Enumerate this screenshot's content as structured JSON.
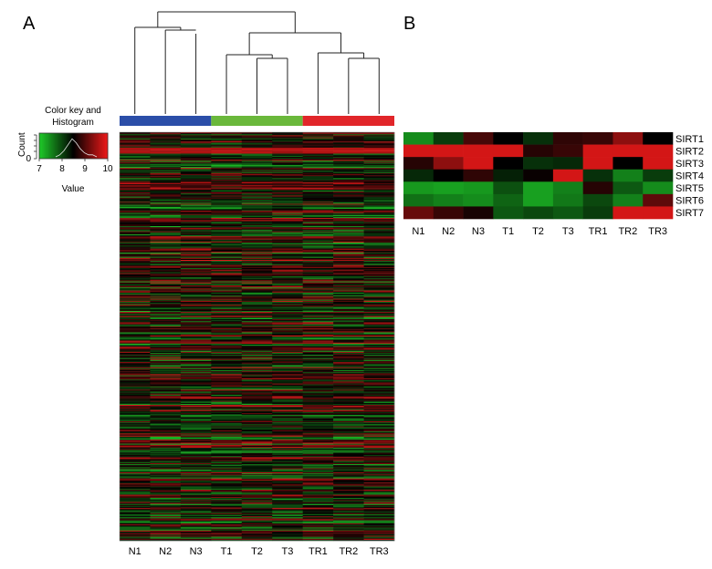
{
  "figure": {
    "panel_a_label": "A",
    "panel_b_label": "B"
  },
  "chart_data": [
    {
      "type": "heatmap",
      "title": "",
      "samples": [
        "N1",
        "N2",
        "N3",
        "T1",
        "T2",
        "T3",
        "TR1",
        "TR2",
        "TR3"
      ],
      "groups": [
        {
          "name": "N",
          "color": "#2b4ea8",
          "samples": [
            "N1",
            "N2",
            "N3"
          ]
        },
        {
          "name": "T",
          "color": "#6ab83b",
          "samples": [
            "T1",
            "T2",
            "T3"
          ]
        },
        {
          "name": "TR",
          "color": "#e1262a",
          "samples": [
            "TR1",
            "TR2",
            "TR3"
          ]
        }
      ],
      "dendrogram": "((N1,(N2,N3)),((T1,(T2,T3)),(TR1,(TR2,TR3))))",
      "color_key": {
        "title_line1": "Color key and",
        "title_line2": "Histogram",
        "ylabel": "Count",
        "xlabel": "Value",
        "ticks": [
          "7",
          "8",
          "9",
          "10"
        ],
        "yticks": [
          "0"
        ],
        "range": [
          7,
          10
        ],
        "low_color": "#22c52e",
        "mid_color": "#000000",
        "high_color": "#e61b1b"
      },
      "row_count": 400,
      "high_expression_row_band": [
        15,
        20
      ]
    },
    {
      "type": "heatmap",
      "title": "",
      "samples": [
        "N1",
        "N2",
        "N3",
        "T1",
        "T2",
        "T3",
        "TR1",
        "TR2",
        "TR3"
      ],
      "rows": [
        "SIRT1",
        "SIRT2",
        "SIRT3",
        "SIRT4",
        "SIRT5",
        "SIRT6",
        "SIRT7"
      ],
      "values": [
        [
          0.15,
          0.35,
          0.65,
          0.5,
          0.38,
          0.6,
          0.62,
          0.8,
          0.5
        ],
        [
          0.95,
          0.95,
          0.95,
          0.95,
          0.58,
          0.62,
          0.95,
          0.95,
          0.95
        ],
        [
          0.58,
          0.8,
          0.95,
          0.5,
          0.38,
          0.4,
          0.95,
          0.5,
          0.95
        ],
        [
          0.4,
          0.5,
          0.6,
          0.42,
          0.52,
          0.95,
          0.38,
          0.18,
          0.35
        ],
        [
          0.12,
          0.1,
          0.12,
          0.3,
          0.1,
          0.18,
          0.58,
          0.28,
          0.15
        ],
        [
          0.22,
          0.18,
          0.15,
          0.25,
          0.1,
          0.2,
          0.32,
          0.18,
          0.7
        ],
        [
          0.72,
          0.62,
          0.55,
          0.28,
          0.32,
          0.28,
          0.35,
          0.95,
          0.95
        ]
      ],
      "scale_note": "0 = green (low), 0.5 = black, 1 = red (high)"
    }
  ]
}
